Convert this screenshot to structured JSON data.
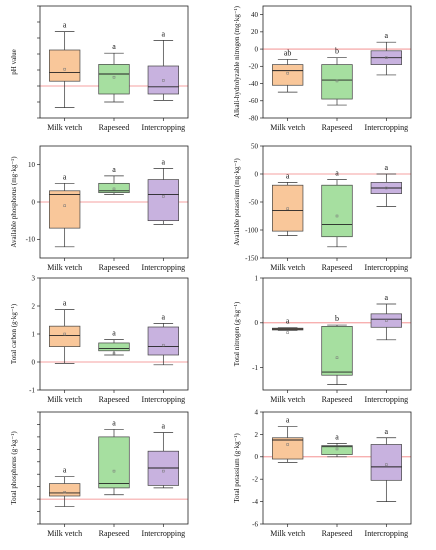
{
  "categories": [
    "Milk vetch",
    "Rapeseed",
    "Intercropping"
  ],
  "colors": {
    "fills": [
      "#f9c79a",
      "#a6dfa0",
      "#c8b2df"
    ],
    "zero_line": "#f28080",
    "frame": "#222222"
  },
  "chart_data": [
    {
      "type": "box",
      "ylabel": "pH value",
      "ylim": [
        -0.4,
        1.0
      ],
      "yticks": [
        -0.4,
        -0.2,
        0.0,
        0.2,
        0.4,
        0.6,
        0.8,
        1.0
      ],
      "ytick_labels": [
        "",
        "",
        "",
        "",
        "",
        "",
        "",
        ""
      ],
      "boxes": [
        {
          "category": "Milk vetch",
          "whisker_low": -0.27,
          "q1": 0.06,
          "median": 0.17,
          "q3": 0.45,
          "whisker_high": 0.68,
          "mean": 0.21,
          "letter": "a"
        },
        {
          "category": "Rapeseed",
          "whisker_low": -0.2,
          "q1": -0.1,
          "median": 0.15,
          "q3": 0.27,
          "whisker_high": 0.41,
          "mean": 0.11,
          "letter": "a"
        },
        {
          "category": "Intercropping",
          "whisker_low": -0.18,
          "q1": -0.1,
          "median": -0.01,
          "q3": 0.25,
          "whisker_high": 0.57,
          "mean": 0.07,
          "letter": "a"
        }
      ]
    },
    {
      "type": "box",
      "ylabel": "Alkali-hydrolyzable nitrogen (mg·kg⁻¹)",
      "ylim": [
        -80,
        50
      ],
      "yticks": [
        -80,
        -60,
        -40,
        -20,
        0,
        20,
        40
      ],
      "ytick_labels": [
        "-80",
        "-60",
        "-40",
        "-20",
        "0",
        "20",
        "40"
      ],
      "boxes": [
        {
          "category": "Milk vetch",
          "whisker_low": -50,
          "q1": -42,
          "median": -25,
          "q3": -18,
          "whisker_high": -12,
          "mean": -28,
          "letter": "ab"
        },
        {
          "category": "Rapeseed",
          "whisker_low": -65,
          "q1": -58,
          "median": -36,
          "q3": -18,
          "whisker_high": -10,
          "mean": -37,
          "letter": "b"
        },
        {
          "category": "Intercropping",
          "whisker_low": -30,
          "q1": -18,
          "median": -10,
          "q3": -2,
          "whisker_high": 8,
          "mean": -10,
          "letter": "a"
        }
      ]
    },
    {
      "type": "box",
      "ylabel": "Available phosphorus (mg·kg⁻¹)",
      "ylim": [
        -15,
        15
      ],
      "yticks": [
        -10,
        0,
        10
      ],
      "ytick_labels": [
        "-10",
        "0",
        "10"
      ],
      "boxes": [
        {
          "category": "Milk vetch",
          "whisker_low": -12,
          "q1": -7,
          "median": 2,
          "q3": 3,
          "whisker_high": 5,
          "mean": -1,
          "letter": "a"
        },
        {
          "category": "Rapeseed",
          "whisker_low": 2,
          "q1": 2.5,
          "median": 3,
          "q3": 5,
          "whisker_high": 7,
          "mean": 3.5,
          "letter": "a"
        },
        {
          "category": "Intercropping",
          "whisker_low": -6,
          "q1": -5,
          "median": 2,
          "q3": 6,
          "whisker_high": 9,
          "mean": 1.5,
          "letter": "a"
        }
      ]
    },
    {
      "type": "box",
      "ylabel": "Available potassium (mg·kg⁻¹)",
      "ylim": [
        -150,
        50
      ],
      "yticks": [
        -150,
        -100,
        -50,
        0,
        50
      ],
      "ytick_labels": [
        "-150",
        "-100",
        "-50",
        "0",
        "50"
      ],
      "boxes": [
        {
          "category": "Milk vetch",
          "whisker_low": -110,
          "q1": -102,
          "median": -65,
          "q3": -20,
          "whisker_high": -15,
          "mean": -62,
          "letter": "a"
        },
        {
          "category": "Rapeseed",
          "whisker_low": -130,
          "q1": -112,
          "median": -90,
          "q3": -20,
          "whisker_high": -10,
          "mean": -75,
          "letter": "a"
        },
        {
          "category": "Intercropping",
          "whisker_low": -58,
          "q1": -35,
          "median": -25,
          "q3": -15,
          "whisker_high": 0,
          "mean": -25,
          "letter": "a"
        }
      ]
    },
    {
      "type": "box",
      "ylabel": "Total carbon (g·kg⁻¹)",
      "ylim": [
        -1,
        3
      ],
      "yticks": [
        -1,
        0,
        1,
        2,
        3
      ],
      "ytick_labels": [
        "-1",
        "0",
        "1",
        "2",
        "3"
      ],
      "boxes": [
        {
          "category": "Milk vetch",
          "whisker_low": -0.05,
          "q1": 0.55,
          "median": 0.95,
          "q3": 1.28,
          "whisker_high": 1.87,
          "mean": 1.0,
          "letter": "a"
        },
        {
          "category": "Rapeseed",
          "whisker_low": 0.25,
          "q1": 0.4,
          "median": 0.48,
          "q3": 0.68,
          "whisker_high": 0.8,
          "mean": 0.3,
          "letter": "a"
        },
        {
          "category": "Intercropping",
          "whisker_low": -0.1,
          "q1": 0.25,
          "median": 0.55,
          "q3": 1.25,
          "whisker_high": 1.38,
          "mean": 0.6,
          "letter": "a"
        }
      ]
    },
    {
      "type": "box",
      "ylabel": "Total nitrogen (g·kg⁻¹)",
      "ylim": [
        -1.5,
        1.0
      ],
      "yticks": [
        -1,
        0,
        1
      ],
      "ytick_labels": [
        "-1",
        "0",
        "1"
      ],
      "boxes": [
        {
          "category": "Milk vetch",
          "whisker_low": -0.17,
          "q1": -0.16,
          "median": -0.14,
          "q3": -0.12,
          "whisker_high": -0.11,
          "mean": -0.22,
          "letter": "a"
        },
        {
          "category": "Rapeseed",
          "whisker_low": -1.38,
          "q1": -1.17,
          "median": -1.1,
          "q3": -0.08,
          "whisker_high": -0.05,
          "mean": -0.78,
          "letter": "b"
        },
        {
          "category": "Intercropping",
          "whisker_low": -0.38,
          "q1": -0.1,
          "median": 0.08,
          "q3": 0.2,
          "whisker_high": 0.42,
          "mean": 0.05,
          "letter": "a"
        }
      ]
    },
    {
      "type": "box",
      "ylabel": "Total phosphorus (g·kg⁻¹)",
      "ylim": [
        -0.4,
        1.4
      ],
      "yticks": [
        -0.4,
        -0.2,
        0.0,
        0.2,
        0.4,
        0.6,
        0.8,
        1.0,
        1.2,
        1.4
      ],
      "ytick_labels": [
        "",
        "",
        "",
        "",
        "",
        "",
        "",
        "",
        "",
        ""
      ],
      "boxes": [
        {
          "category": "Milk vetch",
          "whisker_low": -0.12,
          "q1": 0.05,
          "median": 0.1,
          "q3": 0.25,
          "whisker_high": 0.36,
          "mean": 0.11,
          "letter": "a"
        },
        {
          "category": "Rapeseed",
          "whisker_low": 0.07,
          "q1": 0.18,
          "median": 0.25,
          "q3": 1.0,
          "whisker_high": 1.12,
          "mean": 0.45,
          "letter": "a"
        },
        {
          "category": "Intercropping",
          "whisker_low": 0.18,
          "q1": 0.22,
          "median": 0.5,
          "q3": 0.77,
          "whisker_high": 1.07,
          "mean": 0.45,
          "letter": "a"
        }
      ]
    },
    {
      "type": "box",
      "ylabel": "Total potassium (g·kg⁻¹)",
      "ylim": [
        -6,
        4
      ],
      "yticks": [
        -6,
        -4,
        -2,
        0,
        2,
        4
      ],
      "ytick_labels": [
        "-6",
        "-4",
        "-2",
        "0",
        "2",
        "4"
      ],
      "boxes": [
        {
          "category": "Milk vetch",
          "whisker_low": -0.5,
          "q1": -0.2,
          "median": 1.5,
          "q3": 1.7,
          "whisker_high": 2.7,
          "mean": 1.1,
          "letter": "a"
        },
        {
          "category": "Rapeseed",
          "whisker_low": 0.0,
          "q1": 0.2,
          "median": 0.9,
          "q3": 1.0,
          "whisker_high": 1.2,
          "mean": 0.7,
          "letter": "a"
        },
        {
          "category": "Intercropping",
          "whisker_low": -4.0,
          "q1": -2.1,
          "median": -0.9,
          "q3": 1.1,
          "whisker_high": 1.7,
          "mean": -0.7,
          "letter": "a"
        }
      ]
    }
  ]
}
